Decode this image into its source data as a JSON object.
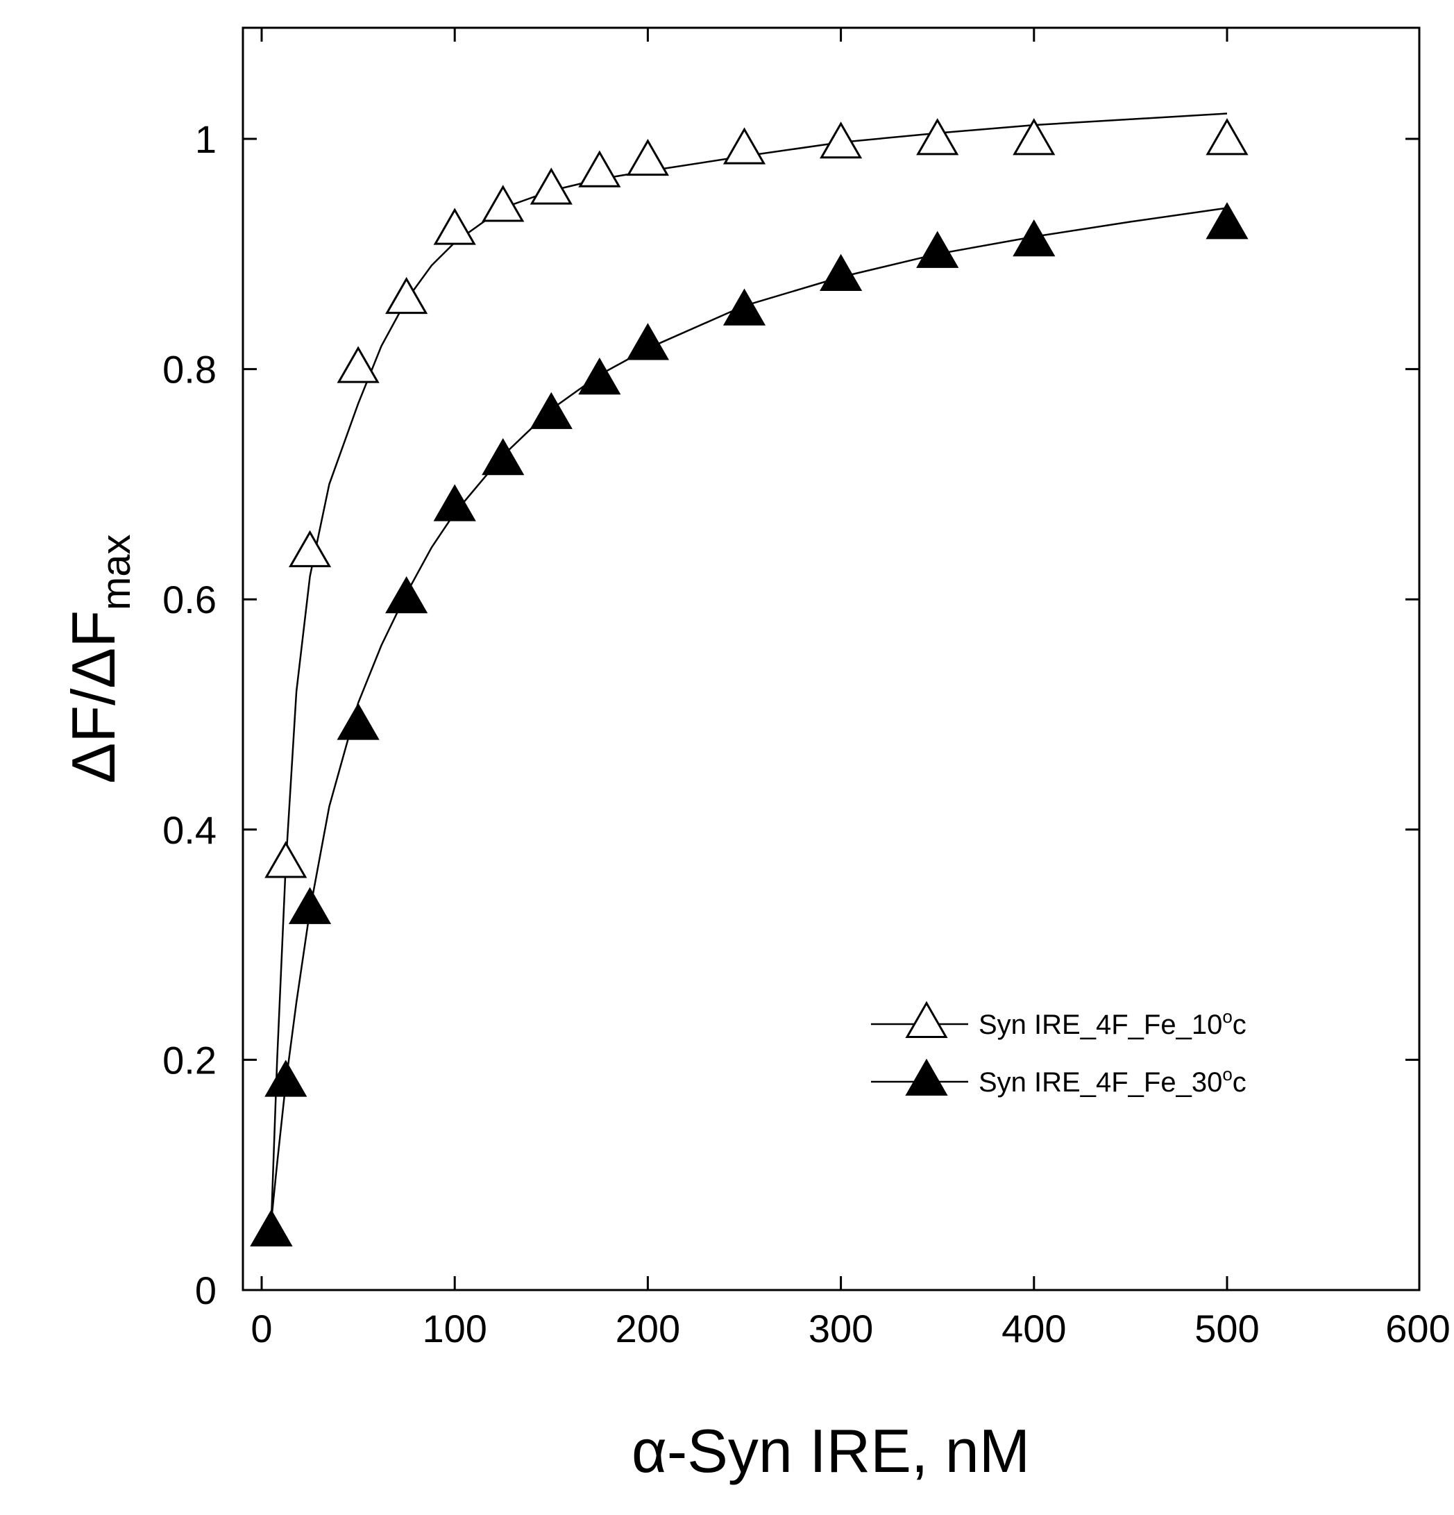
{
  "chart_data": {
    "type": "line",
    "title": "",
    "xlabel": "α-Syn IRE, nM",
    "ylabel": {
      "main": "ΔF/ΔF",
      "subscript": "max"
    },
    "xlim": [
      0,
      600
    ],
    "ylim": [
      0,
      1.1
    ],
    "xticks": [
      0,
      100,
      200,
      300,
      400,
      500,
      600
    ],
    "xtick_labels": [
      "0",
      "100",
      "200",
      "300",
      "400",
      "500",
      "600"
    ],
    "yticks": [
      0,
      0.2,
      0.4,
      0.6,
      0.8,
      1
    ],
    "ytick_labels": [
      "0",
      "0.2",
      "0.4",
      "0.6",
      "0.8",
      "1"
    ],
    "grid": false,
    "legend_position": "lower-right",
    "series": [
      {
        "name": "Syn IRE_4F_Fe_10°c",
        "legend_main": "Syn IRE_4F_Fe_10",
        "legend_sup": "o",
        "legend_tail": "c",
        "marker": "triangle-open",
        "color": "#000000",
        "x": [
          5,
          12.5,
          25,
          50,
          75,
          100,
          125,
          150,
          175,
          200,
          250,
          300,
          350,
          400,
          500
        ],
        "y": [
          0.05,
          0.37,
          0.64,
          0.8,
          0.86,
          0.92,
          0.94,
          0.955,
          0.97,
          0.98,
          0.99,
          0.995,
          0.998,
          0.998,
          0.998
        ],
        "fit_x": [
          5,
          8,
          12.5,
          18,
          25,
          35,
          50,
          62,
          75,
          88,
          100,
          125,
          150,
          175,
          200,
          250,
          300,
          350,
          400,
          450,
          500
        ],
        "fit_y": [
          0.06,
          0.2,
          0.37,
          0.52,
          0.62,
          0.7,
          0.77,
          0.82,
          0.86,
          0.89,
          0.91,
          0.94,
          0.955,
          0.965,
          0.972,
          0.985,
          0.997,
          1.005,
          1.012,
          1.017,
          1.022
        ]
      },
      {
        "name": "Syn IRE_4F_Fe_30°c",
        "legend_main": "Syn IRE_4F_Fe_30",
        "legend_sup": "o",
        "legend_tail": "c",
        "marker": "triangle-filled",
        "color": "#000000",
        "x": [
          5,
          12.5,
          25,
          50,
          75,
          100,
          125,
          150,
          175,
          200,
          250,
          300,
          350,
          400,
          500
        ],
        "y": [
          0.05,
          0.18,
          0.33,
          0.49,
          0.6,
          0.68,
          0.72,
          0.76,
          0.79,
          0.82,
          0.85,
          0.88,
          0.9,
          0.91,
          0.925
        ],
        "fit_x": [
          5,
          8,
          12.5,
          18,
          25,
          35,
          50,
          62,
          75,
          88,
          100,
          125,
          150,
          175,
          200,
          250,
          300,
          350,
          400,
          450,
          500
        ],
        "fit_y": [
          0.06,
          0.11,
          0.18,
          0.25,
          0.33,
          0.42,
          0.51,
          0.56,
          0.605,
          0.645,
          0.675,
          0.725,
          0.765,
          0.795,
          0.818,
          0.855,
          0.88,
          0.9,
          0.915,
          0.928,
          0.94
        ]
      }
    ]
  }
}
